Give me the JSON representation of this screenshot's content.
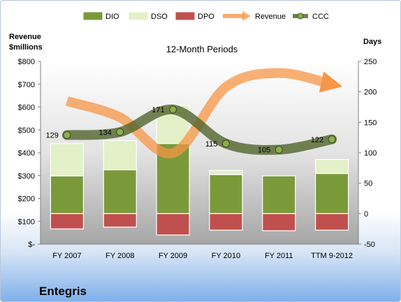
{
  "chart_data": {
    "type": "bar",
    "title": "12-Month Periods",
    "company": "Entegris",
    "left_axis_title": [
      "Revenue",
      "$millions"
    ],
    "right_axis_title": "Days",
    "categories": [
      "FY 2007",
      "FY 2008",
      "FY 2009",
      "FY 2010",
      "FY 2011",
      "TTM 9-2012"
    ],
    "left_ticks": [
      "$-",
      "$100",
      "$200",
      "$300",
      "$400",
      "$500",
      "$600",
      "$700",
      "$800"
    ],
    "right_ticks": [
      "-50",
      "0",
      "50",
      "100",
      "150",
      "200",
      "250"
    ],
    "ylim_left": [
      0,
      800
    ],
    "ylim_right": [
      -50,
      250
    ],
    "legend_position": "top",
    "grid": false,
    "series": [
      {
        "name": "DIO",
        "axis": "days",
        "kind": "stacked-bar",
        "color": "#7a9a3a",
        "values": [
          62,
          72,
          115,
          64,
          62,
          66
        ]
      },
      {
        "name": "DSO",
        "axis": "days",
        "kind": "stacked-bar",
        "color": "#e4f0c8",
        "values": [
          53,
          48,
          63,
          7,
          0,
          23
        ]
      },
      {
        "name": "DPO",
        "axis": "days",
        "kind": "stacked-bar-negative",
        "color": "#c0504d",
        "values": [
          -25,
          -22,
          -35,
          -27,
          -28,
          -27
        ]
      },
      {
        "name": "Revenue",
        "axis": "revenue",
        "kind": "line",
        "color": "#f79646",
        "values": [
          626,
          555,
          399,
          688,
          749,
          700
        ]
      },
      {
        "name": "CCC",
        "axis": "days",
        "kind": "line-markers",
        "color": "#4e6128",
        "values": [
          129,
          134,
          171,
          115,
          105,
          122
        ]
      }
    ],
    "ccc_labels": [
      "129",
      "134",
      "171",
      "115",
      "105",
      "122"
    ]
  }
}
